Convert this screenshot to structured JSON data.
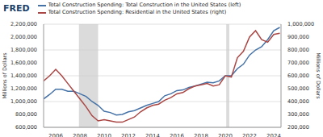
{
  "chart_data": {
    "type": "line",
    "logo_text": "FRED",
    "y_label": "Millions of Dollars",
    "y2_label": "Millions of Dollars",
    "x": [
      2005.0,
      2005.5,
      2006.0,
      2006.5,
      2007.0,
      2007.5,
      2008.0,
      2008.5,
      2009.0,
      2009.5,
      2010.0,
      2010.5,
      2011.0,
      2011.5,
      2012.0,
      2012.5,
      2013.0,
      2013.5,
      2014.0,
      2014.5,
      2015.0,
      2015.5,
      2016.0,
      2016.5,
      2017.0,
      2017.5,
      2018.0,
      2018.5,
      2019.0,
      2019.5,
      2020.0,
      2020.5,
      2021.0,
      2021.5,
      2022.0,
      2022.5,
      2023.0,
      2023.5,
      2024.0,
      2024.5
    ],
    "series": [
      {
        "name": "Total Construction Spending: Total Construction in the United States (left)",
        "color": "#4572a7",
        "values": [
          1040000,
          1110000,
          1190000,
          1190000,
          1160000,
          1160000,
          1120000,
          1080000,
          1000000,
          940000,
          850000,
          830000,
          790000,
          800000,
          840000,
          860000,
          900000,
          940000,
          970000,
          1000000,
          1090000,
          1120000,
          1170000,
          1180000,
          1220000,
          1240000,
          1270000,
          1300000,
          1290000,
          1320000,
          1400000,
          1400000,
          1510000,
          1580000,
          1720000,
          1800000,
          1850000,
          1960000,
          2100000,
          2150000
        ]
      },
      {
        "name": "Total Construction Spending: Residential in the United States (right)",
        "color": "#aa4643",
        "axis": "y2",
        "values": [
          560000,
          600000,
          650000,
          600000,
          540000,
          480000,
          420000,
          360000,
          290000,
          250000,
          260000,
          250000,
          240000,
          240000,
          260000,
          280000,
          320000,
          350000,
          370000,
          380000,
          410000,
          430000,
          460000,
          470000,
          500000,
          520000,
          530000,
          540000,
          520000,
          530000,
          600000,
          590000,
          740000,
          790000,
          900000,
          950000,
          880000,
          860000,
          920000,
          930000
        ]
      }
    ],
    "xlim": [
      2005,
      2024.6
    ],
    "xticks": [
      2006,
      2008,
      2010,
      2012,
      2014,
      2016,
      2018,
      2020,
      2022,
      2024
    ],
    "ylim": [
      600000,
      2200000
    ],
    "yticks": [
      {
        "value": 600000,
        "label": "600,000"
      },
      {
        "value": 800000,
        "label": "800,000"
      },
      {
        "value": 1000000,
        "label": "1,000,000"
      },
      {
        "value": 1200000,
        "label": "1,200,000"
      },
      {
        "value": 1400000,
        "label": "1,400,000"
      },
      {
        "value": 1600000,
        "label": "1,600,000"
      },
      {
        "value": 1800000,
        "label": "1,800,000"
      },
      {
        "value": 2000000,
        "label": "2,000,000"
      },
      {
        "value": 2200000,
        "label": "2,200,000"
      }
    ],
    "y2lim": [
      200000,
      1000000
    ],
    "y2ticks": [
      {
        "value": 200000,
        "label": "200,000"
      },
      {
        "value": 300000,
        "label": "300,000"
      },
      {
        "value": 400000,
        "label": "400,000"
      },
      {
        "value": 500000,
        "label": "500,000"
      },
      {
        "value": 600000,
        "label": "600,000"
      },
      {
        "value": 700000,
        "label": "700,000"
      },
      {
        "value": 800000,
        "label": "800,000"
      },
      {
        "value": 900000,
        "label": "900,000"
      },
      {
        "value": 1000000,
        "label": "1,000,000"
      }
    ],
    "recessions": [
      [
        2007.92,
        2009.5
      ],
      [
        2020.08,
        2020.33
      ]
    ],
    "grid": true
  }
}
